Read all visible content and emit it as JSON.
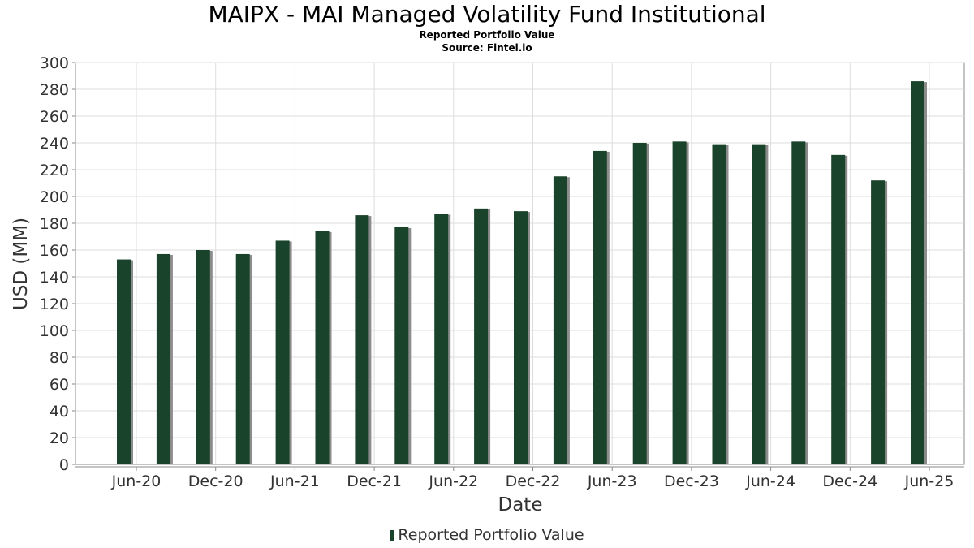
{
  "header": {
    "title": "MAIPX - MAI Managed Volatility Fund Institutional",
    "subtitle": "Reported Portfolio Value",
    "source": "Source: Fintel.io"
  },
  "colors": {
    "bar": "#19432a",
    "bar_shadow": "#8c8c8c",
    "grid": "#dddddd",
    "axis": "#888888"
  },
  "chart_data": {
    "type": "bar",
    "title": "MAIPX - MAI Managed Volatility Fund Institutional",
    "subtitle": "Reported Portfolio Value",
    "xlabel": "Date",
    "ylabel": "USD (MM)",
    "ylim": [
      0,
      300
    ],
    "y_ticks": [
      0,
      20,
      40,
      60,
      80,
      100,
      120,
      140,
      160,
      180,
      200,
      220,
      240,
      260,
      280,
      300
    ],
    "x_ticks": [
      "Jun-20",
      "Dec-20",
      "Jun-21",
      "Dec-21",
      "Jun-22",
      "Dec-22",
      "Jun-23",
      "Dec-23",
      "Jun-24",
      "Dec-24",
      "Jun-25"
    ],
    "grid": true,
    "legend_position": "bottom-center",
    "series": [
      {
        "name": "Reported Portfolio Value",
        "values": [
          153,
          157,
          160,
          157,
          167,
          174,
          186,
          177,
          187,
          191,
          189,
          215,
          234,
          240,
          241,
          239,
          239,
          241,
          231,
          212,
          286
        ]
      }
    ]
  }
}
